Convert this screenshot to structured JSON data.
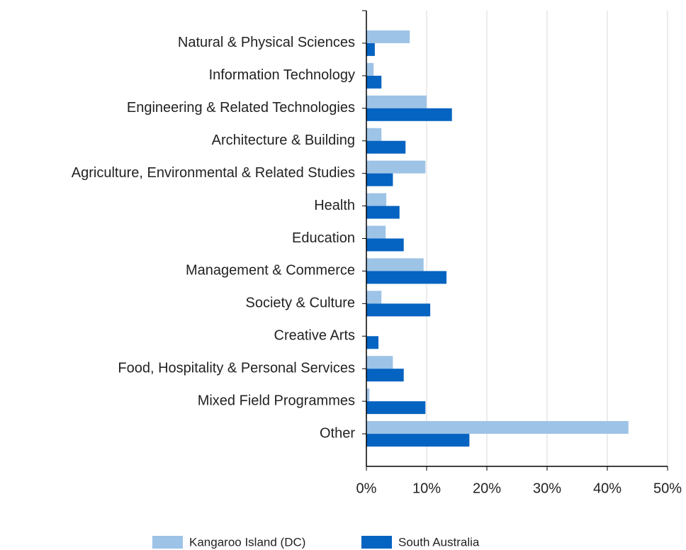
{
  "chart_data": {
    "type": "hbar",
    "categories": [
      "Natural & Physical Sciences",
      "Information Technology",
      "Engineering & Related Technologies",
      "Architecture & Building",
      "Agriculture, Environmental & Related Studies",
      "Health",
      "Education",
      "Management & Commerce",
      "Society & Culture",
      "Creative Arts",
      "Food, Hospitality & Personal Services",
      "Mixed Field Programmes",
      "Other"
    ],
    "series": [
      {
        "name": "Kangaroo Island (DC)",
        "color": "#9dc3e6",
        "values": [
          7.2,
          1.2,
          10.0,
          2.5,
          9.8,
          3.3,
          3.2,
          9.5,
          2.5,
          0,
          4.4,
          0.5,
          43.5
        ]
      },
      {
        "name": "South Australia",
        "color": "#0563c1",
        "values": [
          1.4,
          2.5,
          14.2,
          6.5,
          4.4,
          5.5,
          6.2,
          13.3,
          10.6,
          2.0,
          6.2,
          9.8,
          17.1
        ]
      }
    ],
    "xlim": [
      0,
      50
    ],
    "xticks": [
      {
        "value": 0,
        "label": "0%"
      },
      {
        "value": 10,
        "label": "10%"
      },
      {
        "value": 20,
        "label": "20%"
      },
      {
        "value": 30,
        "label": "30%"
      },
      {
        "value": 40,
        "label": "40%"
      },
      {
        "value": 50,
        "label": "50%"
      }
    ],
    "grid": true,
    "legend": "bottom"
  }
}
